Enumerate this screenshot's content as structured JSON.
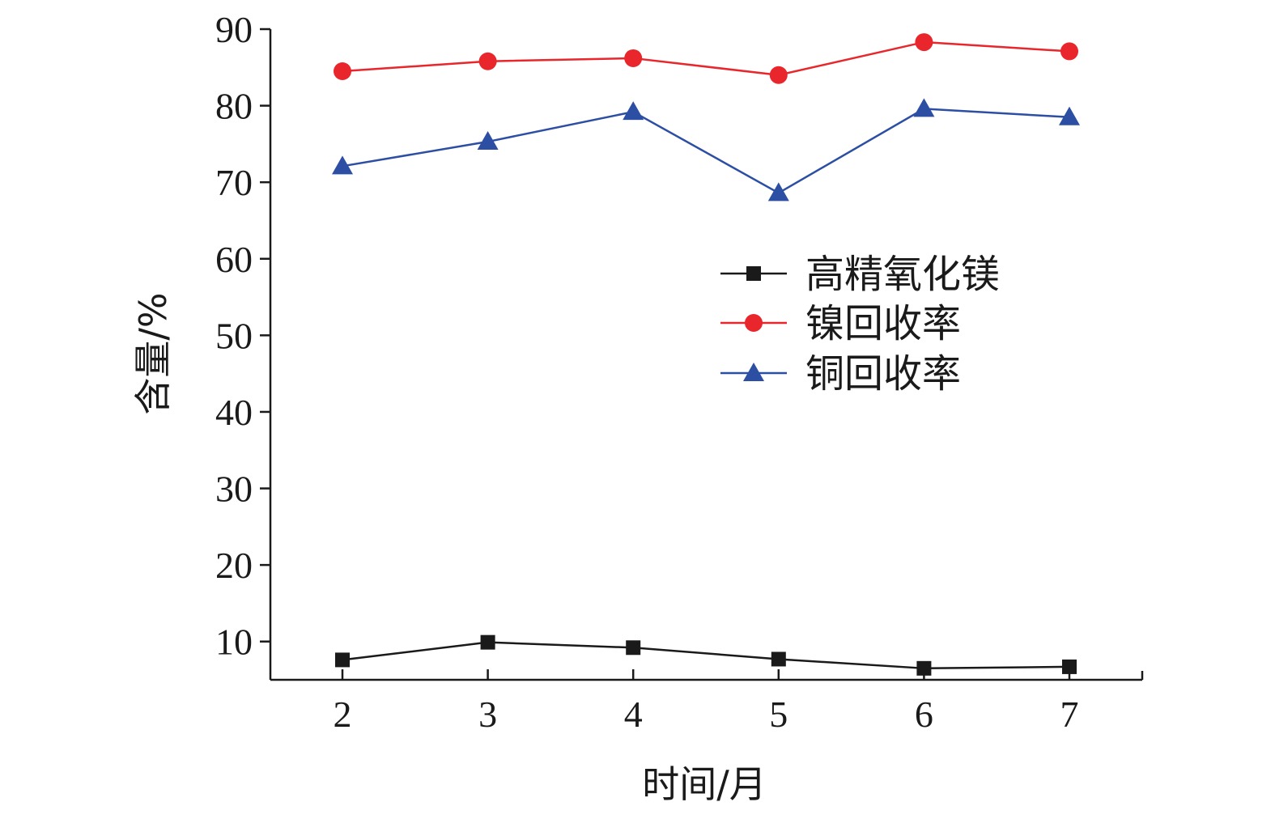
{
  "chart_data": {
    "type": "line",
    "xlabel": "时间/月",
    "ylabel": "含量/%",
    "x": [
      2,
      3,
      4,
      5,
      6,
      7
    ],
    "x_tick_labels": [
      "2",
      "3",
      "4",
      "5",
      "6",
      "7"
    ],
    "xlim": [
      1.5,
      7.5
    ],
    "ylim": [
      5,
      90
    ],
    "y_ticks": [
      10,
      20,
      30,
      40,
      50,
      60,
      70,
      80,
      90
    ],
    "y_tick_labels": [
      "10",
      "20",
      "30",
      "40",
      "50",
      "60",
      "70",
      "80",
      "90"
    ],
    "grid": false,
    "legend_position": "right-middle",
    "series": [
      {
        "name": "高精氧化镁",
        "values": [
          7.6,
          9.9,
          9.2,
          7.7,
          6.5,
          6.7
        ],
        "color": "#1a1a1a",
        "marker": "square"
      },
      {
        "name": "镍回收率",
        "values": [
          84.5,
          85.8,
          86.2,
          84.0,
          88.3,
          87.1
        ],
        "color": "#e8262b",
        "marker": "circle"
      },
      {
        "name": "铜回收率",
        "values": [
          72.1,
          75.3,
          79.2,
          68.6,
          79.6,
          78.5
        ],
        "color": "#2c4ea3",
        "marker": "triangle"
      }
    ]
  }
}
